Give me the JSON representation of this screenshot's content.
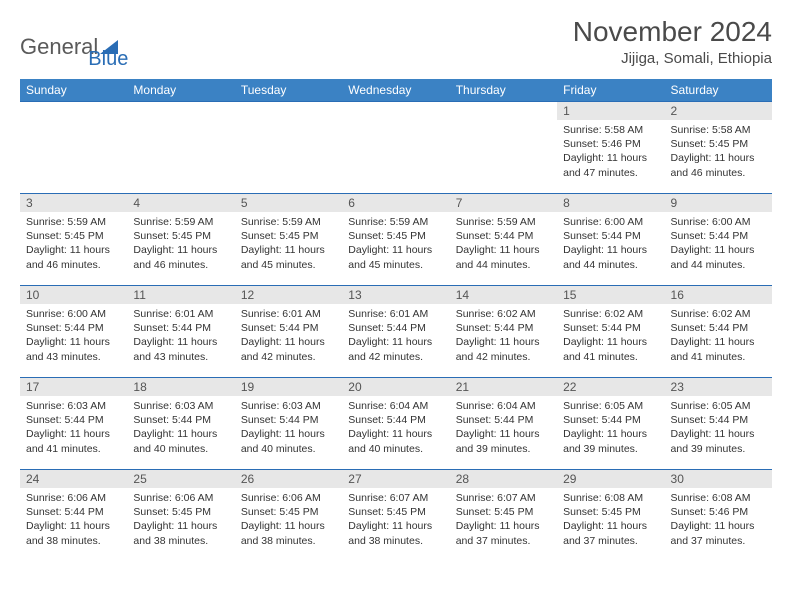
{
  "logo": {
    "text_general": "General",
    "text_blue": "Blue"
  },
  "header": {
    "title": "November 2024",
    "location": "Jijiga, Somali, Ethiopia"
  },
  "colors": {
    "header_bg": "#3b82c4",
    "header_text": "#ffffff",
    "daynum_bg": "#e7e7e7",
    "daynum_text": "#555555",
    "body_text": "#333333",
    "row_border": "#2a6db5",
    "logo_text": "#5a5a5a",
    "logo_blue": "#2a6db5"
  },
  "day_headers": [
    "Sunday",
    "Monday",
    "Tuesday",
    "Wednesday",
    "Thursday",
    "Friday",
    "Saturday"
  ],
  "weeks": [
    [
      {
        "blank": true
      },
      {
        "blank": true
      },
      {
        "blank": true
      },
      {
        "blank": true
      },
      {
        "blank": true
      },
      {
        "day": "1",
        "sunrise": "Sunrise: 5:58 AM",
        "sunset": "Sunset: 5:46 PM",
        "daylight1": "Daylight: 11 hours",
        "daylight2": "and 47 minutes."
      },
      {
        "day": "2",
        "sunrise": "Sunrise: 5:58 AM",
        "sunset": "Sunset: 5:45 PM",
        "daylight1": "Daylight: 11 hours",
        "daylight2": "and 46 minutes."
      }
    ],
    [
      {
        "day": "3",
        "sunrise": "Sunrise: 5:59 AM",
        "sunset": "Sunset: 5:45 PM",
        "daylight1": "Daylight: 11 hours",
        "daylight2": "and 46 minutes."
      },
      {
        "day": "4",
        "sunrise": "Sunrise: 5:59 AM",
        "sunset": "Sunset: 5:45 PM",
        "daylight1": "Daylight: 11 hours",
        "daylight2": "and 46 minutes."
      },
      {
        "day": "5",
        "sunrise": "Sunrise: 5:59 AM",
        "sunset": "Sunset: 5:45 PM",
        "daylight1": "Daylight: 11 hours",
        "daylight2": "and 45 minutes."
      },
      {
        "day": "6",
        "sunrise": "Sunrise: 5:59 AM",
        "sunset": "Sunset: 5:45 PM",
        "daylight1": "Daylight: 11 hours",
        "daylight2": "and 45 minutes."
      },
      {
        "day": "7",
        "sunrise": "Sunrise: 5:59 AM",
        "sunset": "Sunset: 5:44 PM",
        "daylight1": "Daylight: 11 hours",
        "daylight2": "and 44 minutes."
      },
      {
        "day": "8",
        "sunrise": "Sunrise: 6:00 AM",
        "sunset": "Sunset: 5:44 PM",
        "daylight1": "Daylight: 11 hours",
        "daylight2": "and 44 minutes."
      },
      {
        "day": "9",
        "sunrise": "Sunrise: 6:00 AM",
        "sunset": "Sunset: 5:44 PM",
        "daylight1": "Daylight: 11 hours",
        "daylight2": "and 44 minutes."
      }
    ],
    [
      {
        "day": "10",
        "sunrise": "Sunrise: 6:00 AM",
        "sunset": "Sunset: 5:44 PM",
        "daylight1": "Daylight: 11 hours",
        "daylight2": "and 43 minutes."
      },
      {
        "day": "11",
        "sunrise": "Sunrise: 6:01 AM",
        "sunset": "Sunset: 5:44 PM",
        "daylight1": "Daylight: 11 hours",
        "daylight2": "and 43 minutes."
      },
      {
        "day": "12",
        "sunrise": "Sunrise: 6:01 AM",
        "sunset": "Sunset: 5:44 PM",
        "daylight1": "Daylight: 11 hours",
        "daylight2": "and 42 minutes."
      },
      {
        "day": "13",
        "sunrise": "Sunrise: 6:01 AM",
        "sunset": "Sunset: 5:44 PM",
        "daylight1": "Daylight: 11 hours",
        "daylight2": "and 42 minutes."
      },
      {
        "day": "14",
        "sunrise": "Sunrise: 6:02 AM",
        "sunset": "Sunset: 5:44 PM",
        "daylight1": "Daylight: 11 hours",
        "daylight2": "and 42 minutes."
      },
      {
        "day": "15",
        "sunrise": "Sunrise: 6:02 AM",
        "sunset": "Sunset: 5:44 PM",
        "daylight1": "Daylight: 11 hours",
        "daylight2": "and 41 minutes."
      },
      {
        "day": "16",
        "sunrise": "Sunrise: 6:02 AM",
        "sunset": "Sunset: 5:44 PM",
        "daylight1": "Daylight: 11 hours",
        "daylight2": "and 41 minutes."
      }
    ],
    [
      {
        "day": "17",
        "sunrise": "Sunrise: 6:03 AM",
        "sunset": "Sunset: 5:44 PM",
        "daylight1": "Daylight: 11 hours",
        "daylight2": "and 41 minutes."
      },
      {
        "day": "18",
        "sunrise": "Sunrise: 6:03 AM",
        "sunset": "Sunset: 5:44 PM",
        "daylight1": "Daylight: 11 hours",
        "daylight2": "and 40 minutes."
      },
      {
        "day": "19",
        "sunrise": "Sunrise: 6:03 AM",
        "sunset": "Sunset: 5:44 PM",
        "daylight1": "Daylight: 11 hours",
        "daylight2": "and 40 minutes."
      },
      {
        "day": "20",
        "sunrise": "Sunrise: 6:04 AM",
        "sunset": "Sunset: 5:44 PM",
        "daylight1": "Daylight: 11 hours",
        "daylight2": "and 40 minutes."
      },
      {
        "day": "21",
        "sunrise": "Sunrise: 6:04 AM",
        "sunset": "Sunset: 5:44 PM",
        "daylight1": "Daylight: 11 hours",
        "daylight2": "and 39 minutes."
      },
      {
        "day": "22",
        "sunrise": "Sunrise: 6:05 AM",
        "sunset": "Sunset: 5:44 PM",
        "daylight1": "Daylight: 11 hours",
        "daylight2": "and 39 minutes."
      },
      {
        "day": "23",
        "sunrise": "Sunrise: 6:05 AM",
        "sunset": "Sunset: 5:44 PM",
        "daylight1": "Daylight: 11 hours",
        "daylight2": "and 39 minutes."
      }
    ],
    [
      {
        "day": "24",
        "sunrise": "Sunrise: 6:06 AM",
        "sunset": "Sunset: 5:44 PM",
        "daylight1": "Daylight: 11 hours",
        "daylight2": "and 38 minutes."
      },
      {
        "day": "25",
        "sunrise": "Sunrise: 6:06 AM",
        "sunset": "Sunset: 5:45 PM",
        "daylight1": "Daylight: 11 hours",
        "daylight2": "and 38 minutes."
      },
      {
        "day": "26",
        "sunrise": "Sunrise: 6:06 AM",
        "sunset": "Sunset: 5:45 PM",
        "daylight1": "Daylight: 11 hours",
        "daylight2": "and 38 minutes."
      },
      {
        "day": "27",
        "sunrise": "Sunrise: 6:07 AM",
        "sunset": "Sunset: 5:45 PM",
        "daylight1": "Daylight: 11 hours",
        "daylight2": "and 38 minutes."
      },
      {
        "day": "28",
        "sunrise": "Sunrise: 6:07 AM",
        "sunset": "Sunset: 5:45 PM",
        "daylight1": "Daylight: 11 hours",
        "daylight2": "and 37 minutes."
      },
      {
        "day": "29",
        "sunrise": "Sunrise: 6:08 AM",
        "sunset": "Sunset: 5:45 PM",
        "daylight1": "Daylight: 11 hours",
        "daylight2": "and 37 minutes."
      },
      {
        "day": "30",
        "sunrise": "Sunrise: 6:08 AM",
        "sunset": "Sunset: 5:46 PM",
        "daylight1": "Daylight: 11 hours",
        "daylight2": "and 37 minutes."
      }
    ]
  ]
}
